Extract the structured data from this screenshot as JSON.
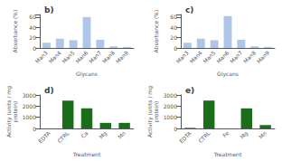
{
  "chart_data": [
    {
      "type": "bar",
      "title": "b)",
      "categories": [
        "Man3",
        "Man4",
        "Man5",
        "Man6",
        "Man7",
        "Man8",
        "Man9"
      ],
      "values": [
        10,
        18,
        15,
        60,
        16,
        3,
        2
      ],
      "color": "#aec6e8",
      "xlabel": "Glycans",
      "ylabel": "Absorbance (%)",
      "ylim": [
        0,
        65
      ],
      "yticks": [
        0,
        20,
        40,
        60
      ],
      "grid": false
    },
    {
      "type": "bar",
      "title": "c)",
      "categories": [
        "Man3",
        "Man4",
        "Man5",
        "Man6",
        "Man7",
        "Man8",
        "Man9"
      ],
      "values": [
        10,
        18,
        15,
        62,
        16,
        3,
        2
      ],
      "color": "#aec6e8",
      "xlabel": "Glycans",
      "ylabel": "Absorbance (%)",
      "ylim": [
        0,
        65
      ],
      "yticks": [
        0,
        20,
        40,
        60
      ],
      "grid": false
    },
    {
      "type": "bar",
      "title": "d)",
      "categories": [
        "EDTA",
        "CTRL",
        "Ca",
        "Mg",
        "Mn"
      ],
      "values": [
        0,
        2500,
        1800,
        500,
        500
      ],
      "color": "#1a6e1a",
      "xlabel": "Treatment",
      "ylabel": "Activity (units / mg\nprotein)",
      "ylim": [
        0,
        3000
      ],
      "yticks": [
        0,
        1000,
        2000,
        3000
      ],
      "grid": false
    },
    {
      "type": "bar",
      "title": "e)",
      "categories": [
        "EDTA",
        "CTRL",
        "Fe",
        "Mg",
        "Mn"
      ],
      "values": [
        50,
        2500,
        0,
        1800,
        300
      ],
      "color": "#1a6e1a",
      "xlabel": "Treatment",
      "ylabel": "Activity (units / mg\nprotein)",
      "ylim": [
        0,
        3000
      ],
      "yticks": [
        0,
        1000,
        2000,
        3000
      ],
      "grid": false
    }
  ]
}
